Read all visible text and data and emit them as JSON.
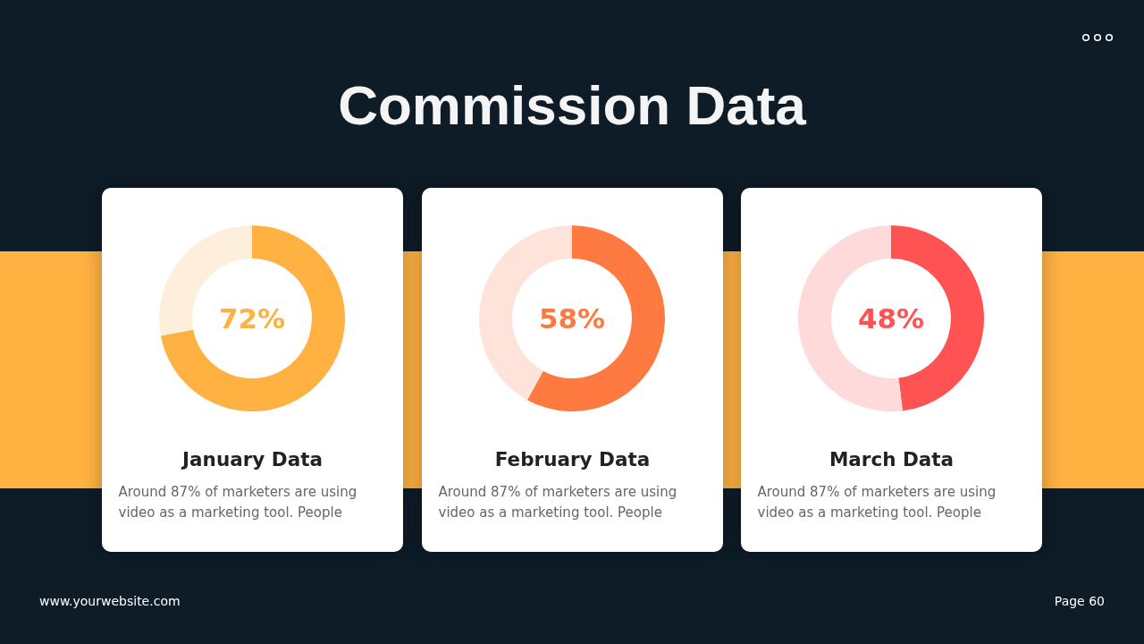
{
  "chart_data": [
    {
      "type": "other",
      "title": "Commission Data",
      "annotations": [
        "www.yourwebsite.com",
        "Page 60"
      ]
    },
    {
      "type": "donut",
      "title": "January Data",
      "subtitle": "Around 87% of marketers are using video as a marketing tool. People",
      "categories": [
        null,
        null
      ],
      "values": [
        72,
        28
      ],
      "colors": [
        "#ffb142",
        "#feefdc"
      ],
      "annotations": [
        "72%"
      ]
    },
    {
      "type": "donut",
      "title": "February Data",
      "subtitle": "Around 87% of marketers are using video as a marketing tool. People",
      "categories": [
        null,
        null
      ],
      "values": [
        58,
        42
      ],
      "colors": [
        "#ff7a40",
        "#fde3da"
      ],
      "annotations": [
        "58%"
      ]
    },
    {
      "type": "donut",
      "title": "March Data",
      "subtitle": "Around 87% of marketers are using video as a marketing tool. People",
      "categories": [
        null,
        null
      ],
      "values": [
        48,
        52
      ],
      "colors": [
        "#ff5353",
        "#ffdada"
      ],
      "annotations": [
        "48%"
      ]
    }
  ]
}
